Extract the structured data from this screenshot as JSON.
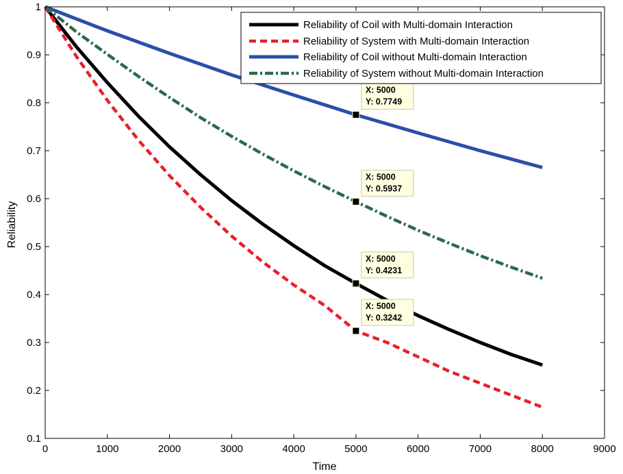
{
  "chart_data": {
    "type": "line",
    "title": "",
    "xlabel": "Time",
    "ylabel": "Reliability",
    "xlim": [
      0,
      9000
    ],
    "ylim": [
      0.1,
      1
    ],
    "xticks": [
      0,
      1000,
      2000,
      3000,
      4000,
      5000,
      6000,
      7000,
      8000,
      9000
    ],
    "yticks": [
      0.1,
      0.2,
      0.3,
      0.4,
      0.5,
      0.6,
      0.7,
      0.8,
      0.9,
      1
    ],
    "grid": false,
    "legend_position": "top-right",
    "series": [
      {
        "name": "Reliability of Coil with Multi-domain Interaction",
        "color": "#000000",
        "style": "solid",
        "x": [
          0,
          500,
          1000,
          1500,
          2000,
          2500,
          3000,
          3500,
          4000,
          4500,
          5000,
          5500,
          6000,
          6500,
          7000,
          7500,
          8000
        ],
        "y": [
          1.0,
          0.917,
          0.842,
          0.772,
          0.708,
          0.65,
          0.596,
          0.547,
          0.502,
          0.46,
          0.4231,
          0.388,
          0.356,
          0.327,
          0.3,
          0.275,
          0.253
        ]
      },
      {
        "name": "Reliability of System with Multi-domain Interaction",
        "color": "#e8202a",
        "style": "dashed",
        "x": [
          0,
          500,
          1000,
          1500,
          2000,
          2500,
          3000,
          3500,
          4000,
          4500,
          5000,
          5500,
          6000,
          6500,
          7000,
          7500,
          8000
        ],
        "y": [
          1.0,
          0.897,
          0.805,
          0.722,
          0.648,
          0.582,
          0.522,
          0.468,
          0.42,
          0.377,
          0.3242,
          0.3,
          0.27,
          0.24,
          0.215,
          0.19,
          0.165
        ]
      },
      {
        "name": "Reliability of Coil without Multi-domain Interaction",
        "color": "#2b4fa8",
        "style": "solid",
        "x": [
          0,
          1000,
          2000,
          3000,
          4000,
          5000,
          6000,
          7000,
          8000
        ],
        "y": [
          1.0,
          0.95,
          0.903,
          0.858,
          0.816,
          0.7749,
          0.737,
          0.7,
          0.665
        ]
      },
      {
        "name": "Reliability of System without Multi-domain Interaction",
        "color": "#2a6b48",
        "style": "dashdot",
        "x": [
          0,
          500,
          1000,
          1500,
          2000,
          2500,
          3000,
          3500,
          4000,
          4500,
          5000,
          5500,
          6000,
          6500,
          7000,
          7500,
          8000
        ],
        "y": [
          1.0,
          0.948,
          0.901,
          0.855,
          0.811,
          0.769,
          0.73,
          0.693,
          0.658,
          0.625,
          0.5937,
          0.563,
          0.534,
          0.507,
          0.481,
          0.457,
          0.434
        ]
      }
    ],
    "annotations": [
      {
        "x": 5000,
        "y": 0.7749,
        "x_text": "X: 5000",
        "y_text": "Y: 0.7749"
      },
      {
        "x": 5000,
        "y": 0.5937,
        "x_text": "X: 5000",
        "y_text": "Y: 0.5937"
      },
      {
        "x": 5000,
        "y": 0.4231,
        "x_text": "X: 5000",
        "y_text": "Y: 0.4231"
      },
      {
        "x": 5000,
        "y": 0.3242,
        "x_text": "X: 5000",
        "y_text": "Y: 0.3242"
      }
    ]
  }
}
